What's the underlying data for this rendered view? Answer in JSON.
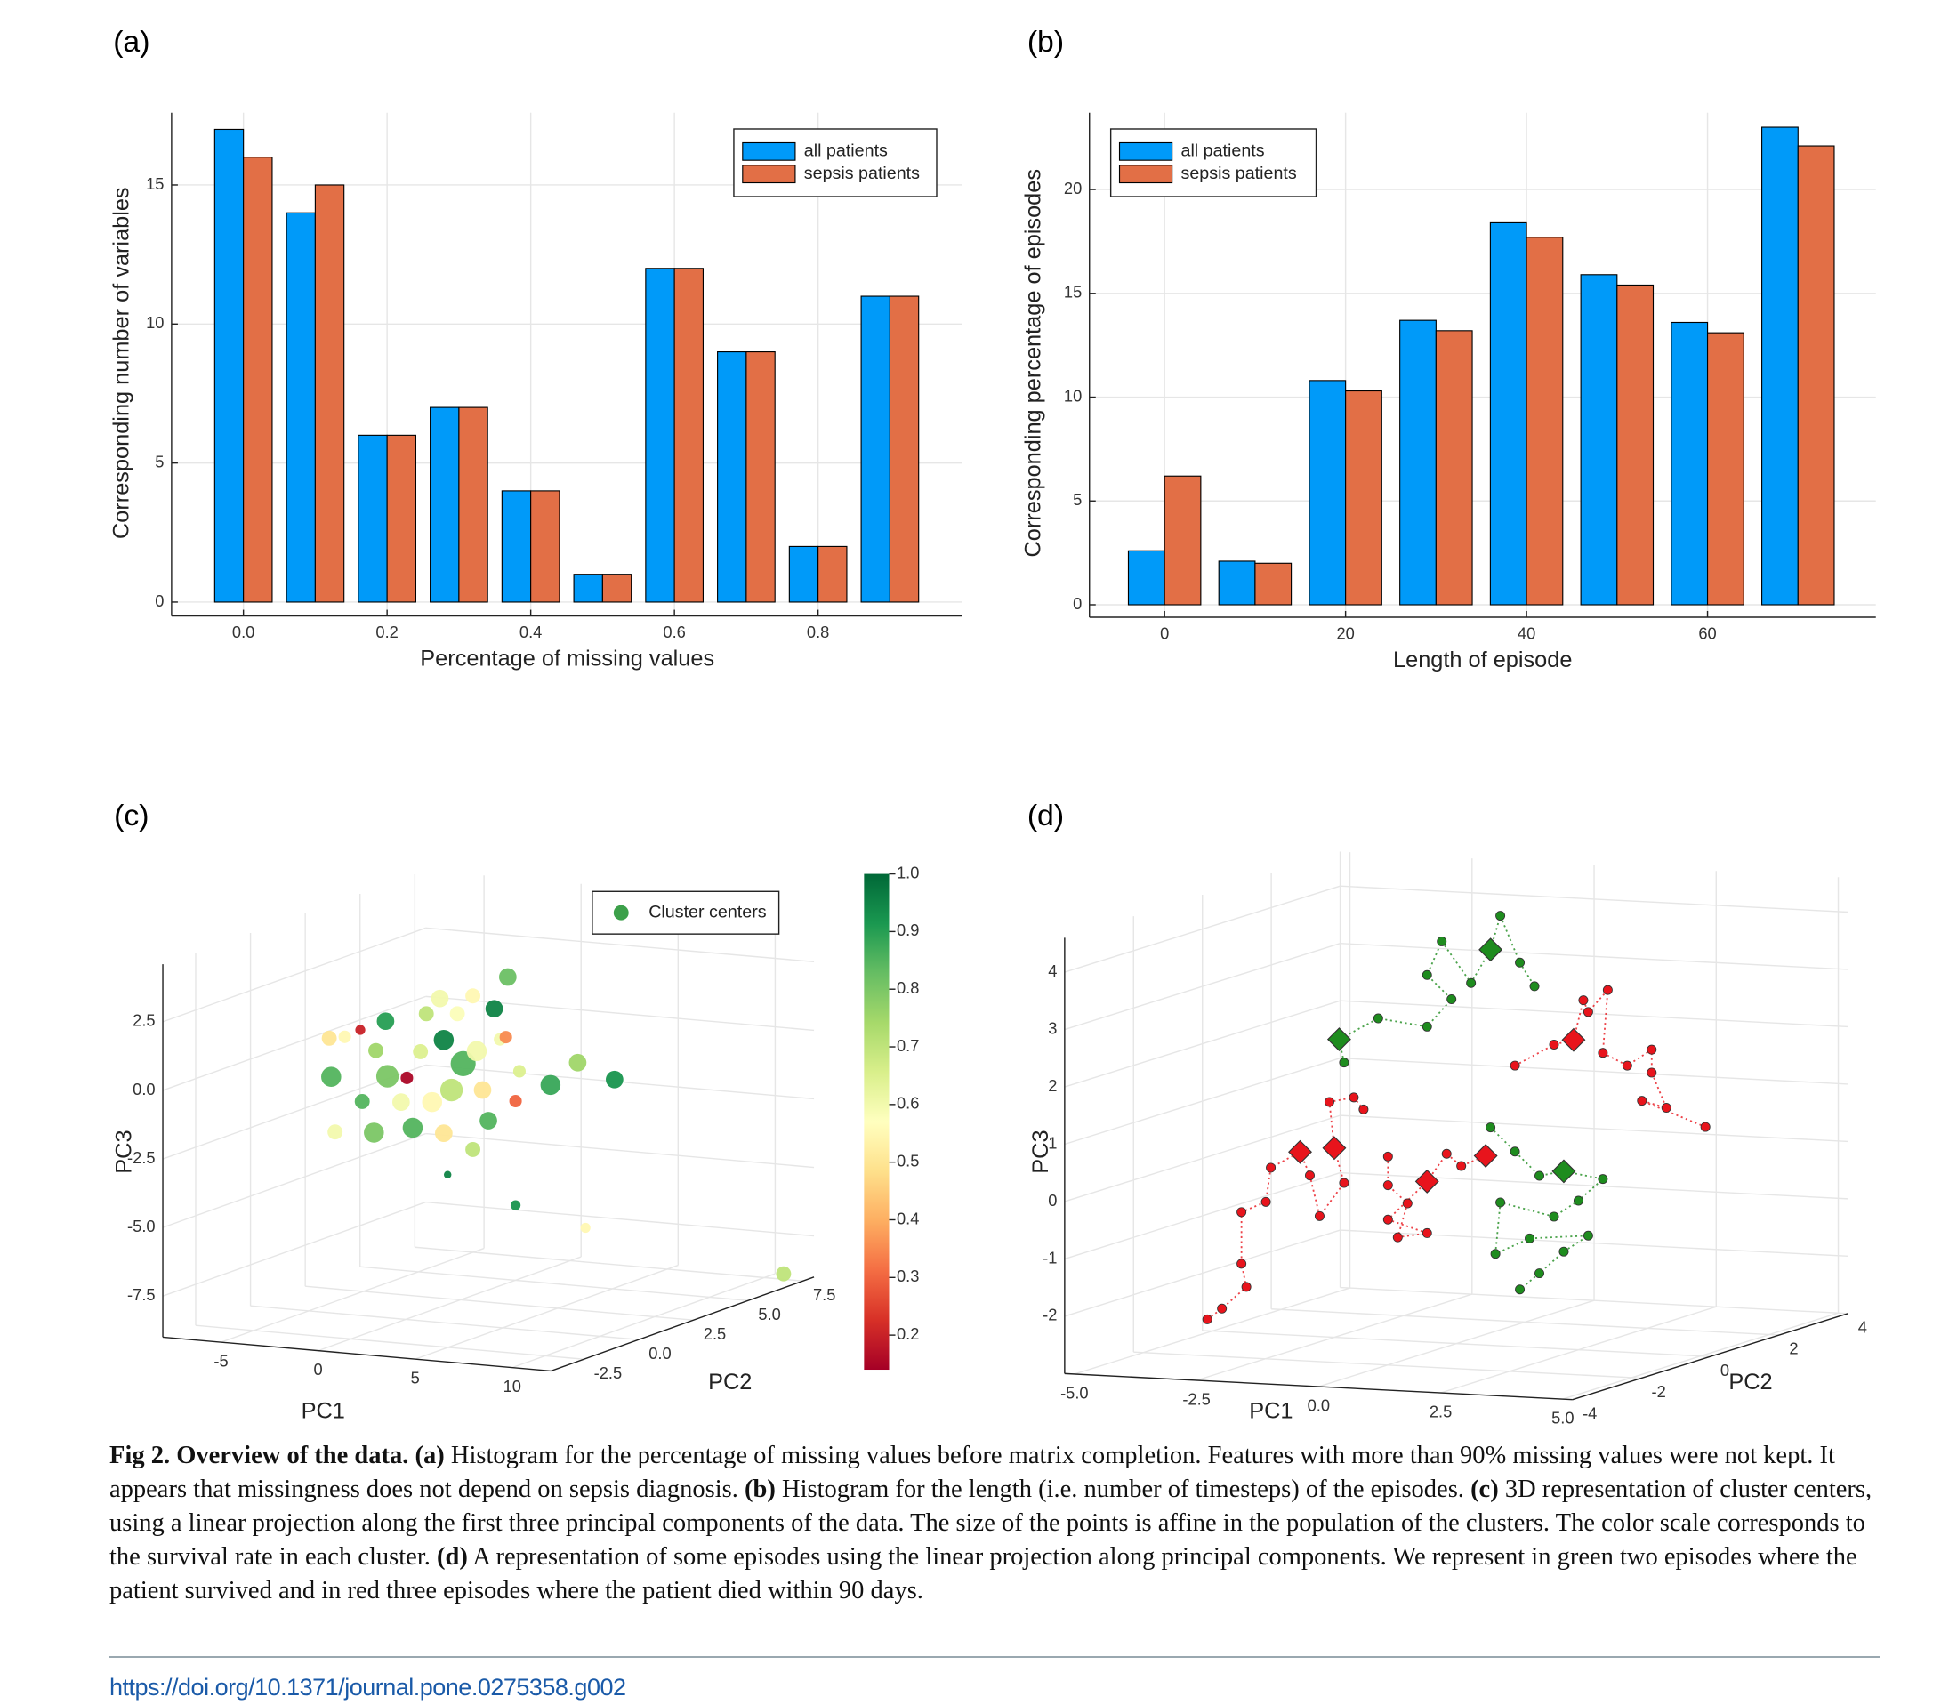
{
  "chart_data": [
    {
      "type": "bar",
      "label": "(a)",
      "xlabel": "Percentage of missing values",
      "ylabel": "Corresponding number of variables",
      "x": [
        0,
        0.1,
        0.2,
        0.3,
        0.4,
        0.5,
        0.6,
        0.7,
        0.8,
        0.9
      ],
      "series": [
        {
          "name": "all patients",
          "color": "#009af9",
          "values": [
            17,
            14,
            6,
            7,
            4,
            1,
            12,
            9,
            2,
            11
          ]
        },
        {
          "name": "sepsis patients",
          "color": "#e26f46",
          "values": [
            16,
            15,
            6,
            7,
            4,
            1,
            12,
            9,
            2,
            11
          ]
        }
      ],
      "xlim": [
        -0.1,
        1.0
      ],
      "ylim": [
        -0.5,
        17.6
      ],
      "xticks": [
        {
          "value": 0,
          "label": "0.0"
        },
        0.2,
        0.4,
        0.6,
        0.8
      ],
      "yticks": [
        0,
        5,
        10,
        15
      ],
      "grid": true,
      "legend": "top-right"
    },
    {
      "type": "bar",
      "label": "(b)",
      "xlabel": "Length of episode",
      "ylabel": "Corresponding percentage of episodes",
      "x": [
        0,
        10,
        20,
        30,
        40,
        50,
        60,
        70
      ],
      "series": [
        {
          "name": "all patients",
          "color": "#009af9",
          "values": [
            2.6,
            2.1,
            10.8,
            13.7,
            18.4,
            15.9,
            13.6,
            23.0
          ]
        },
        {
          "name": "sepsis patients",
          "color": "#e26f46",
          "values": [
            6.2,
            2.0,
            10.3,
            13.2,
            17.7,
            15.4,
            13.1,
            22.1
          ]
        }
      ],
      "xlim": [
        -8.3,
        78.6
      ],
      "ylim": [
        -0.6,
        23.7
      ],
      "xticks": [
        0,
        20,
        40,
        60
      ],
      "yticks": [
        0,
        5,
        10,
        15,
        20
      ],
      "grid": true,
      "legend": "top-left"
    },
    {
      "type": "scatter3d",
      "label": "(c)",
      "xlabel": "PC1",
      "ylabel": "PC2",
      "zlabel": "PC3",
      "xlim": [
        -8,
        12
      ],
      "ylim": [
        -4,
        8
      ],
      "zlim": [
        -9,
        4.6
      ],
      "xticks": [
        -5,
        0,
        5,
        10
      ],
      "yticks": [
        -2.5,
        {
          "value": 0,
          "label": "0.0"
        },
        2.5,
        {
          "value": 5,
          "label": "5.0"
        },
        7.5
      ],
      "zticks": [
        2.5,
        {
          "value": 0,
          "label": "0.0"
        },
        -2.5,
        {
          "value": -5,
          "label": "-5.0"
        },
        -7.5
      ],
      "grid": true,
      "legend": "top-right",
      "colorbar": {
        "colormap": "RdYlGn",
        "lim": [
          0.14,
          1.0
        ],
        "ticks": [
          {
            "value": 1,
            "label": "1.0"
          },
          0.9,
          0.8,
          0.7,
          0.6,
          0.5,
          0.4,
          0.3,
          0.2
        ]
      },
      "series": [
        {
          "name": "Cluster centers",
          "color": "#3ca04a",
          "x": [
            -6.1,
            -5.4,
            -4.6,
            -3.8,
            -3.3,
            -3.2,
            -2.5,
            -2.2,
            -1.9,
            -1.5,
            -1.2,
            -0.5,
            -0.3,
            0.1,
            0.4,
            0.7,
            1.2,
            1.4,
            1.7,
            2.3,
            2.6,
            3.0,
            2.9,
            3.4,
            3.6,
            5.2,
            6.6,
            8.5,
            2.0,
            1.2,
            -3.9,
            -5.9,
            -0.1,
            3.4,
            7.0,
            11.0,
            -0.9,
            -4.5,
            -0.3,
            -6.2
          ],
          "y": [
            2,
            2,
            2,
            2,
            2,
            2,
            2,
            2,
            2,
            2,
            2,
            2,
            2,
            2,
            2,
            2,
            2,
            2,
            2,
            2,
            2,
            2,
            2,
            2,
            2,
            2,
            2,
            2,
            2,
            2,
            2,
            2,
            2,
            2,
            2,
            7.5,
            2,
            2,
            2,
            2
          ],
          "z": [
            -1.1,
            0.4,
            0.7,
            0.0,
            1.1,
            -0.9,
            -1.8,
            -0.9,
            -2.7,
            0.1,
            1.5,
            2.1,
            0.6,
            -1.2,
            1.6,
            -0.2,
            2.3,
            0.3,
            -1.1,
            1.9,
            0.8,
            3.1,
            0.9,
            -1.4,
            -0.3,
            -0.7,
            0.2,
            -0.3,
            -2.2,
            -3.3,
            -3.0,
            -3.1,
            -4.3,
            -5.2,
            -5.8,
            -8.8,
            -1.7,
            -1.9,
            -2.8,
            0.3
          ],
          "sizes": [
            8,
            5,
            4,
            6,
            7,
            9,
            7,
            5,
            8,
            6,
            6,
            7,
            8,
            9,
            6,
            10,
            6,
            8,
            7,
            7,
            5,
            7,
            5,
            5,
            5,
            8,
            7,
            7,
            7,
            6,
            8,
            6,
            3,
            4,
            4,
            6,
            8,
            6,
            7,
            6
          ],
          "survival": [
            0.85,
            0.55,
            0.2,
            0.75,
            0.9,
            0.8,
            0.6,
            0.15,
            0.85,
            0.65,
            0.7,
            0.6,
            0.95,
            0.7,
            0.58,
            0.85,
            0.55,
            0.6,
            0.5,
            0.95,
            0.6,
            0.82,
            0.35,
            0.3,
            0.65,
            0.88,
            0.75,
            0.92,
            0.85,
            0.7,
            0.8,
            0.6,
            0.95,
            0.92,
            0.55,
            0.7,
            0.55,
            0.85,
            0.5,
            0.5
          ]
        }
      ]
    },
    {
      "type": "trajectory3d",
      "label": "(d)",
      "xlabel": "PC1",
      "ylabel": "PC2",
      "zlabel": "PC3",
      "xlim": [
        -5.2,
        5.2
      ],
      "ylim": [
        -4,
        4
      ],
      "zlim": [
        -3,
        4.6
      ],
      "xticks": [
        {
          "value": -5,
          "label": "-5.0"
        },
        -2.5,
        {
          "value": 0,
          "label": "0.0"
        },
        2.5,
        {
          "value": 5,
          "label": "5.0"
        }
      ],
      "yticks": [
        -4,
        -2,
        0,
        2,
        4
      ],
      "zticks": [
        -2,
        -1,
        0,
        1,
        2,
        3,
        4
      ],
      "grid": true,
      "series": [
        {
          "color": "#1e8c1e",
          "x": [
            -2.3,
            -2.4,
            -1.6,
            -0.6,
            -0.1,
            -0.6,
            -0.3,
            0.3,
            0.7,
            0.9,
            1.3,
            1.6
          ],
          "y": [
            0,
            0,
            0,
            0,
            0,
            0,
            0,
            0,
            0,
            0,
            0,
            0
          ],
          "z": [
            1.8,
            2.2,
            2.6,
            2.5,
            3.0,
            3.4,
            4.0,
            3.3,
            3.9,
            4.5,
            3.7,
            3.3
          ],
          "centers": {
            "x": [
              0.7,
              -2.4
            ],
            "y": [
              0,
              0
            ],
            "z": [
              3.9,
              2.2
            ]
          }
        },
        {
          "color": "#1e8c1e",
          "x": [
            0.7,
            1.2,
            1.7,
            2.2,
            3.0,
            2.5,
            2.0,
            0.9,
            0.8,
            1.5,
            2.7,
            2.2,
            1.7,
            1.3
          ],
          "y": [
            0,
            0,
            0,
            0,
            0,
            0,
            0,
            0,
            0,
            0,
            0,
            0,
            0,
            0
          ],
          "z": [
            0.8,
            0.4,
            0.0,
            0.1,
            0.0,
            -0.4,
            -0.7,
            -0.5,
            -1.4,
            -1.1,
            -1.0,
            -1.3,
            -1.7,
            -2.0
          ],
          "centers": {
            "x": [
              2.2
            ],
            "y": [
              0
            ],
            "z": [
              0.1
            ]
          }
        },
        {
          "color": "#e8141c",
          "x": [
            -5.1,
            -4.8,
            -4.3,
            -4.4,
            -4.4,
            -3.9,
            -3.8,
            -3.2,
            -3.0,
            -2.8,
            -2.3,
            -2.5,
            -2.6,
            -2.1,
            -1.9
          ],
          "y": [
            0,
            0,
            0,
            0,
            0,
            0,
            0,
            0,
            0,
            0,
            0,
            0,
            0,
            0,
            0
          ],
          "z": [
            -2.8,
            -2.6,
            -2.2,
            -1.8,
            -0.9,
            -0.7,
            -0.1,
            0.2,
            -0.2,
            -0.9,
            -0.3,
            0.3,
            1.1,
            1.2,
            1.0
          ],
          "centers": {
            "x": [
              -3.2,
              -2.5
            ],
            "y": [
              0,
              0
            ],
            "z": [
              0.2,
              0.3
            ]
          }
        },
        {
          "color": "#e8141c",
          "x": [
            -1.4,
            -1.4,
            -1.0,
            -1.2,
            -0.6,
            -1.4,
            -0.6,
            -0.2,
            0.1,
            0.6
          ],
          "y": [
            0,
            0,
            0,
            0,
            0,
            0,
            0,
            0,
            0,
            0
          ],
          "z": [
            0.2,
            -0.3,
            -0.6,
            -1.2,
            -1.1,
            -0.9,
            -0.2,
            0.3,
            0.1,
            0.3
          ],
          "centers": {
            "x": [
              -0.6,
              0.6
            ],
            "y": [
              0,
              0
            ],
            "z": [
              -0.2,
              0.3
            ]
          }
        },
        {
          "color": "#e8141c",
          "x": [
            1.2,
            2.0,
            2.4,
            2.6,
            2.7,
            3.1,
            3.0,
            3.5,
            4.0,
            4.0,
            4.3,
            3.8,
            5.1
          ],
          "y": [
            0,
            0,
            0,
            0,
            0,
            0,
            0,
            0,
            0,
            0,
            0,
            0,
            0
          ],
          "z": [
            1.9,
            2.3,
            2.4,
            3.1,
            2.9,
            3.3,
            2.2,
            2.0,
            2.3,
            1.9,
            1.3,
            1.4,
            1.0
          ],
          "centers": {
            "x": [
              2.4
            ],
            "y": [
              0
            ],
            "z": [
              2.4
            ]
          }
        }
      ]
    }
  ],
  "caption": {
    "label": "Fig 2.",
    "title": "Overview of the data.",
    "parts": [
      {
        "tag": "(a)",
        "text": "Histogram for the percentage of missing values before matrix completion. Features with more than 90% missing values were not kept. It appears that missingness does not depend on sepsis diagnosis."
      },
      {
        "tag": "(b)",
        "text": "Histogram for the length (i.e. number of timesteps) of the episodes."
      },
      {
        "tag": "(c)",
        "text": "3D representation of cluster centers, using a linear projection along the first three principal components of the data. The size of the points is affine in the population of the clusters. The color scale corresponds to the survival rate in each cluster."
      },
      {
        "tag": "(d)",
        "text": "A representation of some episodes using the linear projection along principal components. We represent in green two episodes where the patient survived and in red three episodes where the patient died within 90 days."
      }
    ]
  },
  "doi": "https://doi.org/10.1371/journal.pone.0275358.g002"
}
